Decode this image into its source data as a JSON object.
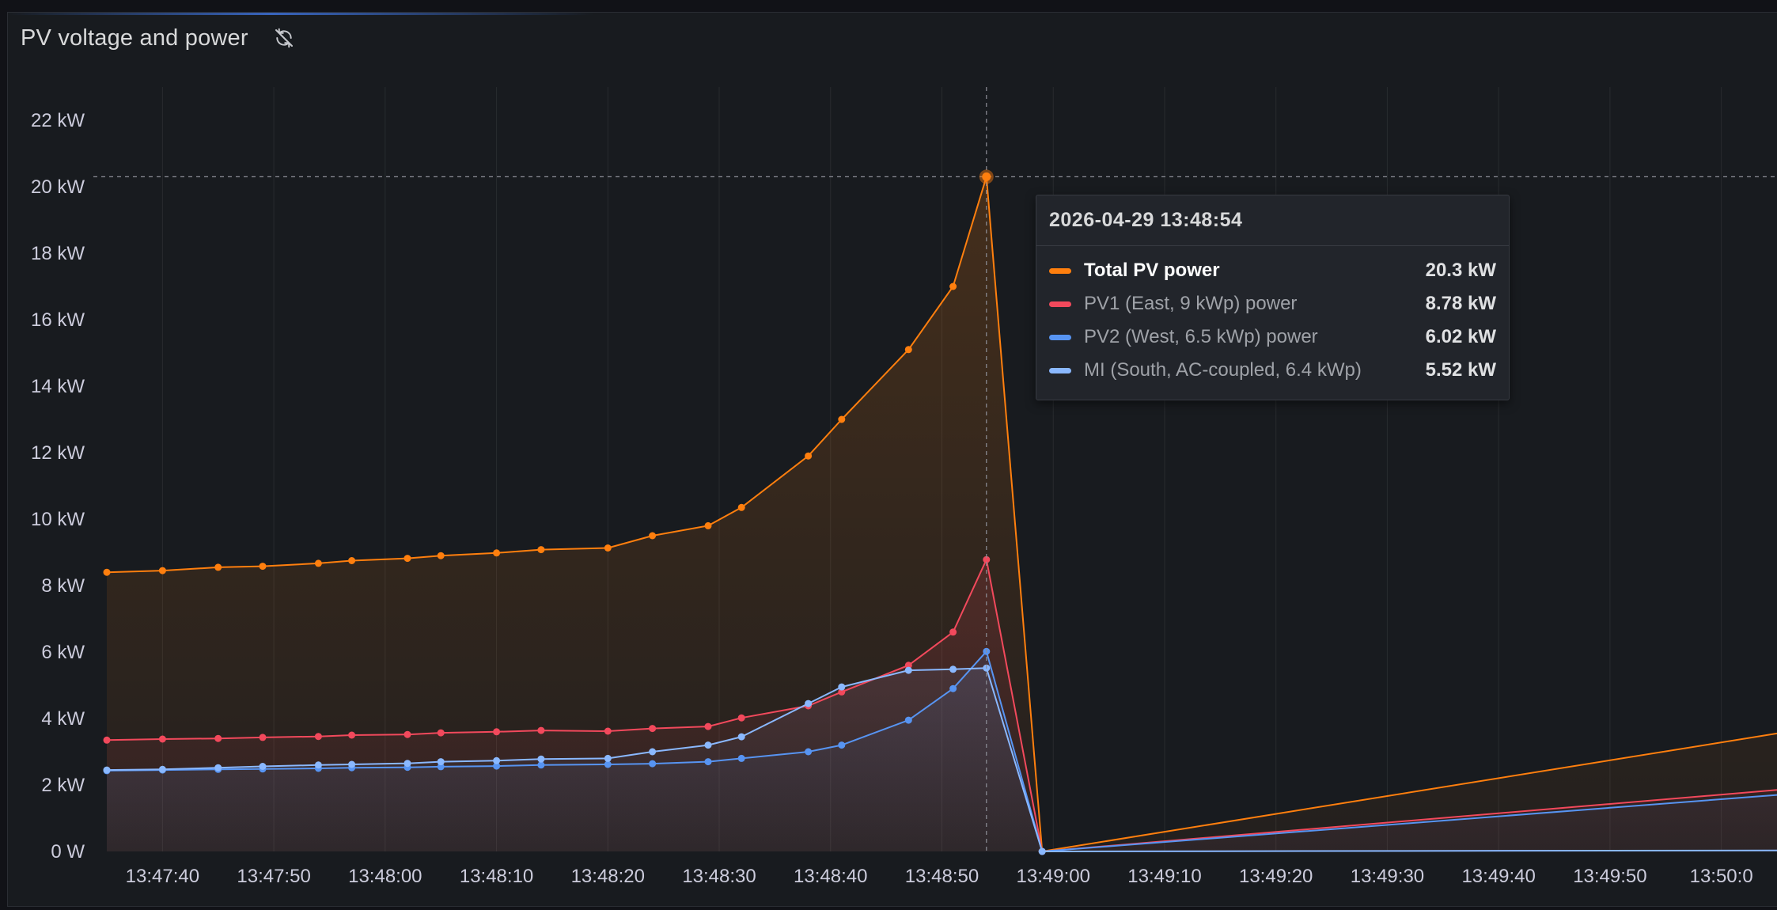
{
  "panel": {
    "title": "PV voltage and power",
    "icon": "sync-off-icon"
  },
  "tooltip": {
    "time": "2026-04-29 13:48:54",
    "rows": [
      {
        "label": "Total PV power",
        "value": "20.3 kW",
        "color": "#ff7f0e",
        "active": true
      },
      {
        "label": "PV1 (East, 9 kWp) power",
        "value": "8.78 kW",
        "color": "#f2495c",
        "active": false
      },
      {
        "label": "PV2 (West, 6.5 kWp) power",
        "value": "6.02 kW",
        "color": "#5794f2",
        "active": false
      },
      {
        "label": "MI (South, AC-coupled, 6.4 kWp)",
        "value": "5.52 kW",
        "color": "#8ab8ff",
        "active": false
      }
    ]
  },
  "chart_data": {
    "type": "area",
    "y_unit": "kW",
    "ylim": [
      0,
      23
    ],
    "yticks": [
      0,
      2,
      4,
      6,
      8,
      10,
      12,
      14,
      16,
      18,
      20,
      22
    ],
    "ytick_labels": [
      "0 W",
      "2 kW",
      "4 kW",
      "6 kW",
      "8 kW",
      "10 kW",
      "12 kW",
      "14 kW",
      "16 kW",
      "18 kW",
      "20 kW",
      "22 kW"
    ],
    "x_unit": "time",
    "xlim": [
      "13:47:35",
      "13:50:05"
    ],
    "xticks": [
      "13:47:40",
      "13:47:50",
      "13:48:00",
      "13:48:10",
      "13:48:20",
      "13:48:30",
      "13:48:40",
      "13:48:50",
      "13:49:00",
      "13:49:10",
      "13:49:20",
      "13:49:30",
      "13:49:40",
      "13:49:50",
      "13:50:00"
    ],
    "xtick_labels": [
      "13:47:40",
      "13:47:50",
      "13:48:00",
      "13:48:10",
      "13:48:20",
      "13:48:30",
      "13:48:40",
      "13:48:50",
      "13:49:00",
      "13:49:10",
      "13:49:20",
      "13:49:30",
      "13:49:40",
      "13:49:50",
      "13:50:0"
    ],
    "hover_time": "13:48:54",
    "grid": true,
    "series": [
      {
        "name": "Total PV power",
        "color": "#ff7f0e",
        "points": [
          [
            "13:47:35",
            8.4
          ],
          [
            "13:47:40",
            8.45
          ],
          [
            "13:47:45",
            8.55
          ],
          [
            "13:47:49",
            8.58
          ],
          [
            "13:47:54",
            8.67
          ],
          [
            "13:47:57",
            8.75
          ],
          [
            "13:48:02",
            8.82
          ],
          [
            "13:48:05",
            8.9
          ],
          [
            "13:48:10",
            8.98
          ],
          [
            "13:48:14",
            9.08
          ],
          [
            "13:48:20",
            9.13
          ],
          [
            "13:48:24",
            9.5
          ],
          [
            "13:48:29",
            9.8
          ],
          [
            "13:48:32",
            10.35
          ],
          [
            "13:48:38",
            11.9
          ],
          [
            "13:48:41",
            13.0
          ],
          [
            "13:48:47",
            15.1
          ],
          [
            "13:48:51",
            17.0
          ],
          [
            "13:48:54",
            20.3
          ],
          [
            "13:48:59",
            0
          ],
          [
            "13:50:05",
            3.55
          ]
        ],
        "dots_until": 18,
        "fill_opacity": 0.12
      },
      {
        "name": "PV1 (East, 9 kWp) power",
        "color": "#f2495c",
        "points": [
          [
            "13:47:35",
            3.35
          ],
          [
            "13:47:40",
            3.38
          ],
          [
            "13:47:45",
            3.4
          ],
          [
            "13:47:49",
            3.43
          ],
          [
            "13:47:54",
            3.46
          ],
          [
            "13:47:57",
            3.5
          ],
          [
            "13:48:02",
            3.52
          ],
          [
            "13:48:05",
            3.57
          ],
          [
            "13:48:10",
            3.6
          ],
          [
            "13:48:14",
            3.64
          ],
          [
            "13:48:20",
            3.62
          ],
          [
            "13:48:24",
            3.7
          ],
          [
            "13:48:29",
            3.76
          ],
          [
            "13:48:32",
            4.02
          ],
          [
            "13:48:38",
            4.38
          ],
          [
            "13:48:41",
            4.8
          ],
          [
            "13:48:47",
            5.6
          ],
          [
            "13:48:51",
            6.6
          ],
          [
            "13:48:54",
            8.78
          ],
          [
            "13:48:59",
            0
          ],
          [
            "13:50:05",
            1.85
          ]
        ],
        "dots_until": 18,
        "fill_opacity": 0.1
      },
      {
        "name": "PV2 (West, 6.5 kWp) power",
        "color": "#5794f2",
        "points": [
          [
            "13:47:35",
            2.43
          ],
          [
            "13:47:40",
            2.45
          ],
          [
            "13:47:45",
            2.47
          ],
          [
            "13:47:49",
            2.48
          ],
          [
            "13:47:54",
            2.5
          ],
          [
            "13:47:57",
            2.52
          ],
          [
            "13:48:02",
            2.53
          ],
          [
            "13:48:05",
            2.55
          ],
          [
            "13:48:10",
            2.57
          ],
          [
            "13:48:14",
            2.6
          ],
          [
            "13:48:20",
            2.62
          ],
          [
            "13:48:24",
            2.64
          ],
          [
            "13:48:29",
            2.7
          ],
          [
            "13:48:32",
            2.8
          ],
          [
            "13:48:38",
            3.0
          ],
          [
            "13:48:41",
            3.2
          ],
          [
            "13:48:47",
            3.95
          ],
          [
            "13:48:51",
            4.9
          ],
          [
            "13:48:54",
            6.02
          ],
          [
            "13:48:59",
            0
          ],
          [
            "13:50:05",
            1.7
          ]
        ],
        "dots_until": 18,
        "fill_opacity": 0.07
      },
      {
        "name": "MI (South, AC-coupled, 6.4 kWp)",
        "color": "#8ab8ff",
        "points": [
          [
            "13:47:35",
            2.45
          ],
          [
            "13:47:40",
            2.47
          ],
          [
            "13:47:45",
            2.52
          ],
          [
            "13:47:49",
            2.56
          ],
          [
            "13:47:54",
            2.6
          ],
          [
            "13:47:57",
            2.62
          ],
          [
            "13:48:02",
            2.65
          ],
          [
            "13:48:05",
            2.7
          ],
          [
            "13:48:10",
            2.73
          ],
          [
            "13:48:14",
            2.78
          ],
          [
            "13:48:20",
            2.8
          ],
          [
            "13:48:24",
            3.0
          ],
          [
            "13:48:29",
            3.2
          ],
          [
            "13:48:32",
            3.45
          ],
          [
            "13:48:38",
            4.45
          ],
          [
            "13:48:41",
            4.95
          ],
          [
            "13:48:47",
            5.45
          ],
          [
            "13:48:51",
            5.48
          ],
          [
            "13:48:54",
            5.52
          ],
          [
            "13:48:59",
            0
          ],
          [
            "13:50:05",
            0.03
          ]
        ],
        "dots_until": 18,
        "fill_opacity": 0.05
      }
    ]
  }
}
